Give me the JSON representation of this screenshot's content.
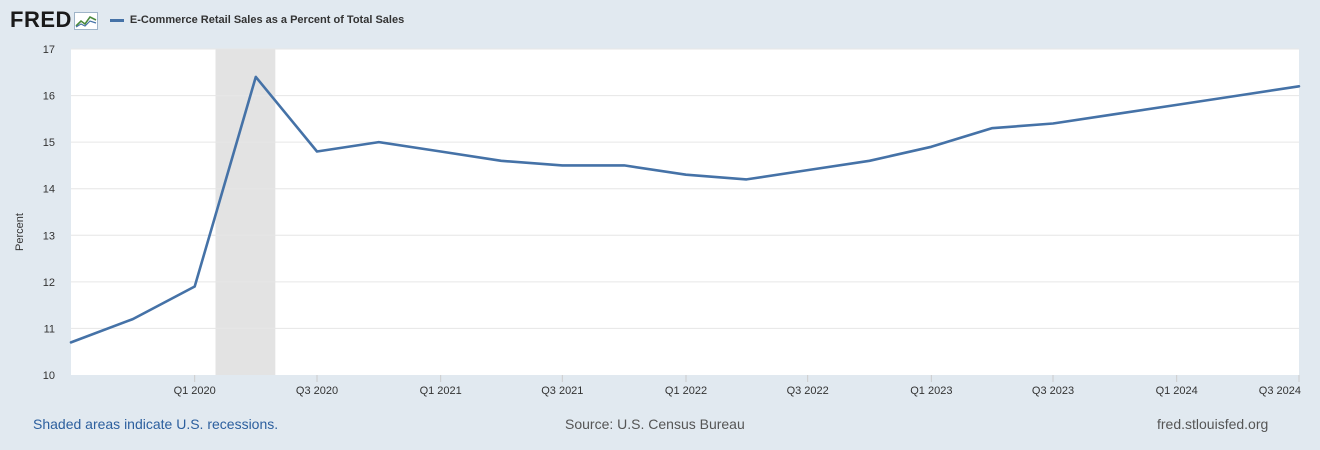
{
  "logo": {
    "text": "FRED",
    "icon": "fred-graph-icon"
  },
  "footer": {
    "recession_note": "Shaded areas indicate U.S. recessions.",
    "source": "Source: U.S. Census Bureau",
    "site": "fred.stlouisfed.org"
  },
  "colors": {
    "line": "#4572a7",
    "background": "#e1e9f0",
    "plot": "#ffffff",
    "recession": "#e3e3e3",
    "grid": "#e6e6e6"
  },
  "chart_data": {
    "type": "line",
    "title": "",
    "xlabel": "",
    "ylabel": "Percent",
    "ylim": [
      10,
      17
    ],
    "yticks": [
      10,
      11,
      12,
      13,
      14,
      15,
      16,
      17
    ],
    "grid": true,
    "legend_position": "top-left",
    "x_tick_labels": [
      "Q1 2020",
      "Q3 2020",
      "Q1 2021",
      "Q3 2021",
      "Q1 2022",
      "Q3 2022",
      "Q1 2023",
      "Q3 2023",
      "Q1 2024",
      "Q3 2024"
    ],
    "recessions": [
      {
        "start": "2020-02-01",
        "end": "2020-04-30"
      }
    ],
    "series": [
      {
        "name": "E-Commerce Retail Sales as a Percent of Total Sales",
        "color": "#4572a7",
        "points": [
          [
            "2019-07-01",
            10.7
          ],
          [
            "2019-10-01",
            11.2
          ],
          [
            "2020-01-01",
            11.9
          ],
          [
            "2020-04-01",
            16.4
          ],
          [
            "2020-07-01",
            14.8
          ],
          [
            "2020-10-01",
            15.0
          ],
          [
            "2021-01-01",
            14.8
          ],
          [
            "2021-04-01",
            14.6
          ],
          [
            "2021-07-01",
            14.5
          ],
          [
            "2021-10-01",
            14.5
          ],
          [
            "2022-01-01",
            14.3
          ],
          [
            "2022-04-01",
            14.2
          ],
          [
            "2022-07-01",
            14.4
          ],
          [
            "2022-10-01",
            14.6
          ],
          [
            "2023-01-01",
            14.9
          ],
          [
            "2023-04-01",
            15.3
          ],
          [
            "2023-07-01",
            15.4
          ],
          [
            "2023-10-01",
            15.6
          ],
          [
            "2024-01-01",
            15.8
          ],
          [
            "2024-04-01",
            16.0
          ],
          [
            "2024-07-01",
            16.2
          ]
        ]
      }
    ]
  }
}
